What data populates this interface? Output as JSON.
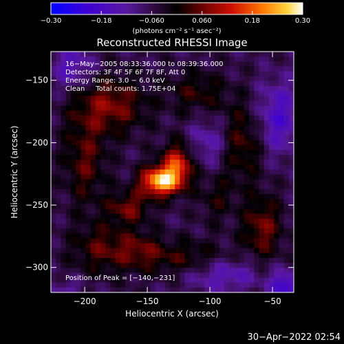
{
  "chart_data": {
    "type": "heatmap",
    "title": "Reconstructed RHESSI Image",
    "xlabel": "Heliocentric X (arcsec)",
    "ylabel": "Heliocentric Y (arcsec)",
    "xlim": [
      -227,
      -33
    ],
    "ylim": [
      -320,
      -127
    ],
    "x_ticks": [
      -200,
      -150,
      -100,
      -50
    ],
    "x_tick_labels": [
      "−200",
      "−150",
      "−100",
      "−50"
    ],
    "y_ticks": [
      -150,
      -200,
      -250,
      -300
    ],
    "y_tick_labels": [
      "−150",
      "−200",
      "−250",
      "−300"
    ],
    "colorbar": {
      "range": [
        -0.3,
        0.3
      ],
      "ticks": [
        -0.3,
        -0.18,
        -0.06,
        0.06,
        0.18,
        0.3
      ],
      "tick_labels": [
        "−0.30",
        "−0.18",
        "−0.060",
        "0.060",
        "0.18",
        "0.30"
      ],
      "unit_label": "(photons cm⁻² s⁻¹ asec⁻²)"
    },
    "annotations": [
      "16−May−2005 08:33:36.000 to 08:39:36.000",
      "Detectors: 3F 4F 5F 6F 7F 8F, Att 0",
      "Energy Range: 3.0 − 6.0 keV",
      "Clean     Total counts: 1.75E+04"
    ],
    "peak_label": "Position of Peak = [−140,−231]",
    "peak": {
      "x": -140,
      "y": -231,
      "value": 0.3
    },
    "sources": [
      {
        "x": -140,
        "y": -231,
        "amp": 0.3,
        "sx": 11,
        "sy": 8
      },
      {
        "x": -126,
        "y": -218,
        "amp": 0.2,
        "sx": 9,
        "sy": 12
      },
      {
        "x": -165,
        "y": -252,
        "amp": 0.12,
        "sx": 12,
        "sy": 9
      },
      {
        "x": -180,
        "y": -170,
        "amp": 0.13,
        "sx": 20,
        "sy": 16
      },
      {
        "x": -110,
        "y": -160,
        "amp": 0.08,
        "sx": 16,
        "sy": 12
      },
      {
        "x": -200,
        "y": -215,
        "amp": 0.1,
        "sx": 12,
        "sy": 25
      },
      {
        "x": -75,
        "y": -200,
        "amp": 0.1,
        "sx": 12,
        "sy": 22
      },
      {
        "x": -58,
        "y": -268,
        "amp": 0.12,
        "sx": 11,
        "sy": 18
      },
      {
        "x": -185,
        "y": -285,
        "amp": 0.1,
        "sx": 18,
        "sy": 14
      },
      {
        "x": -120,
        "y": -293,
        "amp": 0.09,
        "sx": 26,
        "sy": 10
      },
      {
        "x": -95,
        "y": -245,
        "amp": 0.06,
        "sx": 10,
        "sy": 14
      },
      {
        "x": -155,
        "y": -285,
        "amp": 0.07,
        "sx": 12,
        "sy": 10
      },
      {
        "x": -90,
        "y": -305,
        "amp": -0.1,
        "sx": 22,
        "sy": 10
      },
      {
        "x": -45,
        "y": -180,
        "amp": -0.12,
        "sx": 12,
        "sy": 20
      },
      {
        "x": -210,
        "y": -140,
        "amp": -0.1,
        "sx": 12,
        "sy": 12
      },
      {
        "x": -100,
        "y": -200,
        "amp": -0.08,
        "sx": 12,
        "sy": 14
      },
      {
        "x": -40,
        "y": -315,
        "amp": -0.15,
        "sx": 8,
        "sy": 8
      },
      {
        "x": -215,
        "y": -318,
        "amp": -0.06,
        "sx": 10,
        "sy": 6
      }
    ],
    "grid": false
  },
  "footer": {
    "timestamp": "30−Apr−2022 02:54"
  }
}
